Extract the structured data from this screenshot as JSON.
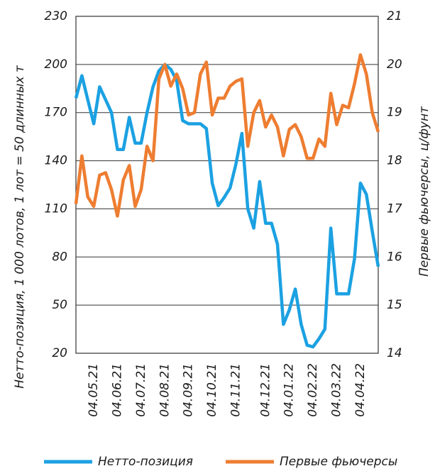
{
  "chart_data": {
    "type": "line",
    "y_label": "Нетто-позиция, 1 000 лотов, 1 лот = 50 длинных т",
    "y2_label": "Первые фьючерсы, ц/фунт",
    "categories": [
      null,
      null,
      null,
      "04.05.21",
      null,
      null,
      null,
      "04.06.21",
      null,
      null,
      null,
      "04.07.21",
      null,
      null,
      null,
      "04.08.21",
      null,
      null,
      null,
      "04.09.21",
      null,
      null,
      null,
      "04.10.21",
      null,
      null,
      null,
      "04.11.21",
      null,
      null,
      null,
      null,
      "04.12.21",
      null,
      null,
      null,
      "04.01.22",
      null,
      null,
      null,
      "04.02.22",
      null,
      null,
      null,
      "04.03.22",
      null,
      null,
      null,
      "04.04.22",
      null,
      null,
      null
    ],
    "series": [
      {
        "name": "Нетто-позиция",
        "color": "#1ba1e2",
        "values": [
          179,
          193,
          178,
          163,
          186,
          178,
          170,
          147,
          147,
          167,
          151,
          151,
          170,
          186,
          196,
          200,
          197,
          190,
          165,
          163,
          163,
          163,
          160,
          126,
          112,
          117,
          123,
          138,
          157,
          110,
          98,
          127,
          101,
          101,
          88,
          38,
          47,
          60,
          38,
          25,
          24,
          29,
          35,
          98,
          57,
          57,
          57,
          79,
          126,
          119,
          96,
          74
        ]
      },
      {
        "name": "Первые фьючерсы",
        "color": "#ee7d31",
        "axis": "y2",
        "values": [
          17.1,
          18.1,
          17.25,
          17.05,
          17.7,
          17.75,
          17.4,
          16.85,
          17.6,
          17.9,
          17.05,
          17.4,
          18.3,
          18.0,
          19.7,
          20.0,
          19.55,
          19.8,
          19.5,
          18.95,
          19.0,
          19.8,
          20.05,
          18.95,
          19.3,
          19.3,
          19.55,
          19.65,
          19.7,
          18.3,
          19.0,
          19.25,
          18.7,
          18.95,
          18.7,
          18.1,
          18.65,
          18.75,
          18.5,
          18.05,
          18.05,
          18.45,
          18.3,
          19.4,
          18.75,
          19.15,
          19.1,
          19.6,
          20.2,
          19.8,
          19.0,
          18.6
        ]
      }
    ],
    "ylim": [
      20,
      230
    ],
    "yticks": [
      20,
      50,
      80,
      110,
      140,
      170,
      200,
      230
    ],
    "y2lim": [
      14,
      21
    ],
    "y2ticks": [
      14,
      15,
      16,
      17,
      18,
      19,
      20,
      21
    ],
    "grid": true,
    "legend": "bottom"
  }
}
